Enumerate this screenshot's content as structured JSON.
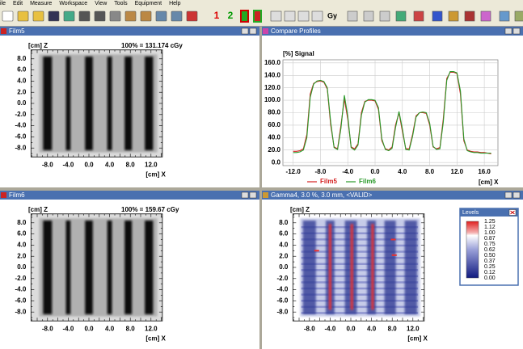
{
  "menu": [
    "ile",
    "Edit",
    "Measure",
    "Workspace",
    "View",
    "Tools",
    "Equipment",
    "Help"
  ],
  "toolbar": {
    "labels": [
      "1",
      "2",
      "Gy"
    ]
  },
  "panes": [
    {
      "title": "Film5",
      "z_label": "[cm] Z",
      "x_label": "[cm] X",
      "dose": "100% = 131.174 cGy",
      "yticks": [
        "8.0",
        "6.0",
        "4.0",
        "2.0",
        "0.0",
        "-2.0",
        "-4.0",
        "-6.0",
        "-8.0"
      ],
      "xticks": [
        "-8.0",
        "-4.0",
        "0.0",
        "4.0",
        "8.0",
        "12.0"
      ]
    },
    {
      "title": "Film6",
      "z_label": "[cm] Z",
      "x_label": "[cm] X",
      "dose": "100% = 159.67 cGy",
      "yticks": [
        "8.0",
        "6.0",
        "4.0",
        "2.0",
        "0.0",
        "-2.0",
        "-4.0",
        "-6.0",
        "-8.0"
      ],
      "xticks": [
        "-8.0",
        "-4.0",
        "0.0",
        "4.0",
        "8.0",
        "12.0"
      ]
    },
    {
      "title": "Gamma4, 3.0 %, 3.0 mm, <VALID>",
      "z_label": "[cm] Z",
      "x_label": "[cm] X",
      "yticks": [
        "8.0",
        "6.0",
        "4.0",
        "2.0",
        "0.0",
        "-2.0",
        "-4.0",
        "-6.0",
        "-8.0"
      ],
      "xticks": [
        "-8.0",
        "-4.0",
        "0.0",
        "4.0",
        "8.0",
        "12.0"
      ],
      "legend": {
        "title": "Levels",
        "levels": [
          "1.25",
          "1.12",
          "1.00",
          "0.87",
          "0.75",
          "0.62",
          "0.50",
          "0.37",
          "0.25",
          "0.12",
          "0.00"
        ]
      }
    }
  ],
  "chart_data": {
    "type": "line",
    "window_title": "Compare Profiles",
    "y_label": "[%] Signal",
    "x_label": "[cm] X",
    "xlim": [
      -13.5,
      18
    ],
    "ylim": [
      -5,
      165
    ],
    "grid": true,
    "xticks": [
      {
        "value": -12,
        "label": "-12.0"
      },
      {
        "value": -8,
        "label": "-8.0"
      },
      {
        "value": -4,
        "label": "-4.0"
      },
      {
        "value": 0,
        "label": "0.0"
      },
      {
        "value": 4,
        "label": "4.0"
      },
      {
        "value": 8,
        "label": "8.0"
      },
      {
        "value": 12,
        "label": "12.0"
      },
      {
        "value": 16,
        "label": "16.0"
      }
    ],
    "yticks": [
      {
        "value": 0,
        "label": "0.0"
      },
      {
        "value": 20,
        "label": "20.0"
      },
      {
        "value": 40,
        "label": "40.0"
      },
      {
        "value": 60,
        "label": "60.0"
      },
      {
        "value": 80,
        "label": "80.0"
      },
      {
        "value": 100,
        "label": "100.0"
      },
      {
        "value": 120,
        "label": "120.0"
      },
      {
        "value": 140,
        "label": "140.0"
      },
      {
        "value": 160,
        "label": "160.0"
      }
    ],
    "x": [
      -12,
      -11.5,
      -11,
      -10.5,
      -10,
      -9.5,
      -9,
      -8.5,
      -8,
      -7.5,
      -7,
      -6.5,
      -6,
      -5.5,
      -5,
      -4.5,
      -4,
      -3.5,
      -3,
      -2.5,
      -2,
      -1.5,
      -1,
      -0.5,
      0,
      0.5,
      1,
      1.5,
      2,
      2.5,
      3,
      3.5,
      4,
      4.5,
      5,
      5.5,
      6,
      6.5,
      7,
      7.5,
      8,
      8.5,
      9,
      9.5,
      10,
      10.5,
      11,
      11.5,
      12,
      12.5,
      13,
      13.5,
      14,
      14.5,
      15,
      15.5,
      16,
      16.5,
      17
    ],
    "series": [
      {
        "name": "Film5",
        "color": "#d42020",
        "values": [
          18,
          18,
          19,
          22,
          45,
          110,
          127,
          130,
          131,
          129,
          118,
          60,
          25,
          22,
          60,
          102,
          70,
          25,
          22,
          30,
          80,
          98,
          100,
          100,
          99,
          85,
          35,
          22,
          20,
          25,
          60,
          80,
          50,
          22,
          22,
          45,
          75,
          80,
          80,
          79,
          60,
          25,
          22,
          24,
          70,
          135,
          145,
          145,
          143,
          110,
          35,
          20,
          18,
          17,
          17,
          16,
          16,
          15,
          14
        ]
      },
      {
        "name": "Film6",
        "color": "#2a9a2a",
        "values": [
          16,
          16,
          17,
          20,
          40,
          105,
          126,
          131,
          132,
          130,
          120,
          65,
          24,
          21,
          55,
          108,
          75,
          24,
          20,
          28,
          76,
          97,
          101,
          101,
          100,
          88,
          38,
          21,
          19,
          23,
          56,
          82,
          54,
          21,
          20,
          42,
          73,
          80,
          81,
          80,
          63,
          26,
          21,
          22,
          65,
          132,
          146,
          146,
          144,
          115,
          38,
          19,
          17,
          16,
          16,
          15,
          15,
          15,
          15
        ]
      }
    ]
  }
}
